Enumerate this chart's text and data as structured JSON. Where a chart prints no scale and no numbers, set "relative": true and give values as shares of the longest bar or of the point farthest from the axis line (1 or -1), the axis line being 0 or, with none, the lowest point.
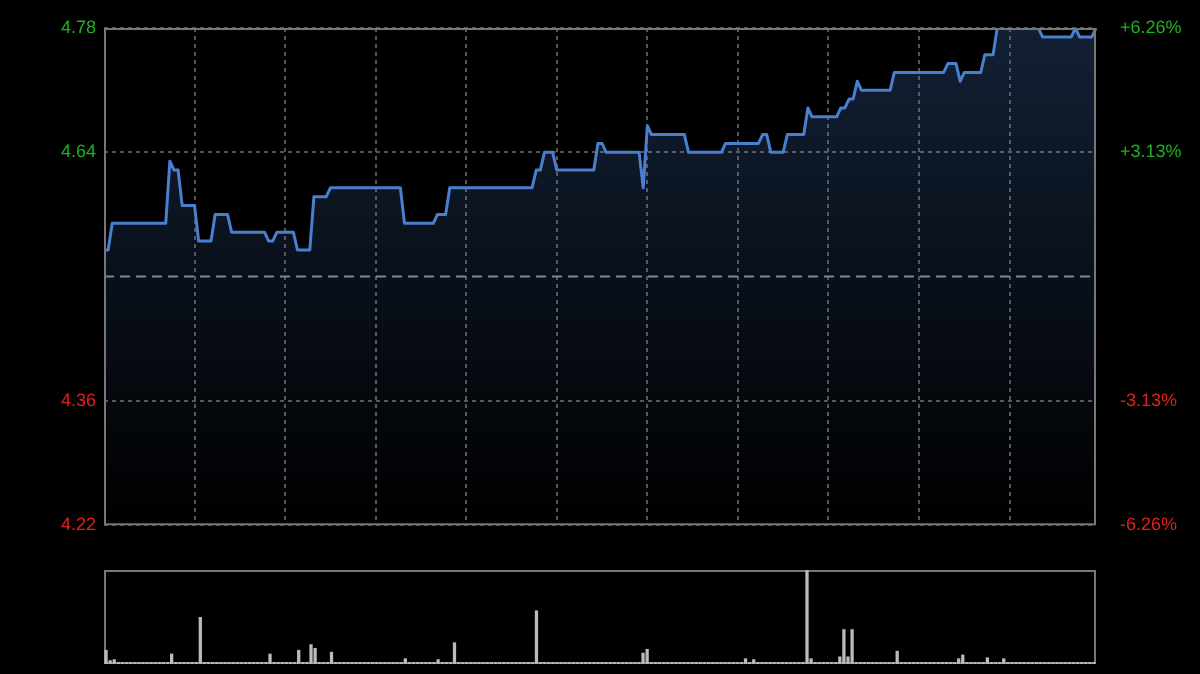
{
  "chart_data": [
    {
      "type": "area",
      "categories": [
        null,
        null,
        null,
        null,
        null,
        null,
        null,
        null,
        null,
        null,
        null,
        null,
        null,
        null,
        null,
        null,
        null,
        null,
        null,
        null,
        null,
        null,
        null,
        null,
        null,
        null,
        null,
        null,
        null,
        null,
        null,
        null,
        null,
        null,
        null,
        null,
        null,
        null,
        null,
        null,
        null,
        null,
        null,
        null,
        null,
        null,
        null,
        null,
        null,
        null,
        null,
        null,
        null,
        null,
        null,
        null,
        null,
        null,
        null,
        null,
        null,
        null,
        null,
        null,
        null,
        null,
        null,
        null,
        null,
        null,
        null,
        null,
        null,
        null,
        null,
        null,
        null,
        null,
        null,
        null,
        null,
        null,
        null,
        null,
        null,
        null,
        null,
        null,
        null,
        null,
        null,
        null,
        null,
        null,
        null,
        null,
        null,
        null,
        null,
        null,
        null,
        null,
        null,
        null,
        null,
        null,
        null,
        null,
        null,
        null,
        null,
        null,
        null,
        null,
        null,
        null,
        null,
        null,
        null,
        null,
        null,
        null,
        null,
        null,
        null,
        null,
        null,
        null,
        null,
        null,
        null,
        null,
        null,
        null,
        null,
        null,
        null,
        null,
        null,
        null,
        null,
        null,
        null,
        null,
        null,
        null,
        null,
        null,
        null,
        null,
        null,
        null,
        null,
        null,
        null,
        null,
        null,
        null,
        null,
        null,
        null,
        null,
        null,
        null,
        null,
        null,
        null,
        null,
        null,
        null,
        null,
        null,
        null,
        null,
        null,
        null,
        null,
        null,
        null,
        null,
        null,
        null,
        null,
        null,
        null,
        null,
        null,
        null,
        null,
        null,
        null,
        null,
        null,
        null,
        null,
        null,
        null,
        null,
        null,
        null,
        null,
        null,
        null,
        null,
        null,
        null,
        null,
        null,
        null,
        null,
        null,
        null,
        null,
        null,
        null,
        null,
        null,
        null,
        null,
        null,
        null,
        null,
        null,
        null,
        null,
        null,
        null,
        null,
        null,
        null,
        null,
        null,
        null,
        null,
        null,
        null,
        null,
        null,
        null,
        null,
        null,
        null
      ],
      "values": [
        4.53,
        4.53,
        4.56,
        4.56,
        4.56,
        4.56,
        4.56,
        4.56,
        4.56,
        4.56,
        4.56,
        4.56,
        4.56,
        4.56,
        4.56,
        4.56,
        4.63,
        4.62,
        4.62,
        4.58,
        4.58,
        4.58,
        4.58,
        4.54,
        4.54,
        4.54,
        4.54,
        4.57,
        4.57,
        4.57,
        4.57,
        4.55,
        4.55,
        4.55,
        4.55,
        4.55,
        4.55,
        4.55,
        4.55,
        4.55,
        4.54,
        4.54,
        4.55,
        4.55,
        4.55,
        4.55,
        4.55,
        4.53,
        4.53,
        4.53,
        4.53,
        4.59,
        4.59,
        4.59,
        4.59,
        4.6,
        4.6,
        4.6,
        4.6,
        4.6,
        4.6,
        4.6,
        4.6,
        4.6,
        4.6,
        4.6,
        4.6,
        4.6,
        4.6,
        4.6,
        4.6,
        4.6,
        4.6,
        4.56,
        4.56,
        4.56,
        4.56,
        4.56,
        4.56,
        4.56,
        4.56,
        4.57,
        4.57,
        4.57,
        4.6,
        4.6,
        4.6,
        4.6,
        4.6,
        4.6,
        4.6,
        4.6,
        4.6,
        4.6,
        4.6,
        4.6,
        4.6,
        4.6,
        4.6,
        4.6,
        4.6,
        4.6,
        4.6,
        4.6,
        4.6,
        4.62,
        4.62,
        4.64,
        4.64,
        4.64,
        4.62,
        4.62,
        4.62,
        4.62,
        4.62,
        4.62,
        4.62,
        4.62,
        4.62,
        4.62,
        4.65,
        4.65,
        4.64,
        4.64,
        4.64,
        4.64,
        4.64,
        4.64,
        4.64,
        4.64,
        4.64,
        4.6,
        4.67,
        4.66,
        4.66,
        4.66,
        4.66,
        4.66,
        4.66,
        4.66,
        4.66,
        4.66,
        4.64,
        4.64,
        4.64,
        4.64,
        4.64,
        4.64,
        4.64,
        4.64,
        4.64,
        4.65,
        4.65,
        4.65,
        4.65,
        4.65,
        4.65,
        4.65,
        4.65,
        4.65,
        4.66,
        4.66,
        4.64,
        4.64,
        4.64,
        4.64,
        4.66,
        4.66,
        4.66,
        4.66,
        4.66,
        4.69,
        4.68,
        4.68,
        4.68,
        4.68,
        4.68,
        4.68,
        4.68,
        4.69,
        4.69,
        4.7,
        4.7,
        4.72,
        4.71,
        4.71,
        4.71,
        4.71,
        4.71,
        4.71,
        4.71,
        4.71,
        4.73,
        4.73,
        4.73,
        4.73,
        4.73,
        4.73,
        4.73,
        4.73,
        4.73,
        4.73,
        4.73,
        4.73,
        4.73,
        4.74,
        4.74,
        4.74,
        4.72,
        4.73,
        4.73,
        4.73,
        4.73,
        4.73,
        4.75,
        4.75,
        4.75,
        4.78,
        4.78,
        4.78,
        4.78,
        4.78,
        4.78,
        4.78,
        4.78,
        4.78,
        4.78,
        4.78,
        4.77,
        4.77,
        4.77,
        4.77,
        4.77,
        4.77,
        4.77,
        4.77,
        4.78,
        4.77,
        4.77,
        4.77,
        4.77,
        4.78
      ],
      "color": "#4a7fd0",
      "ylim": [
        4.22,
        4.78
      ],
      "yticks": [
        4.22,
        4.36,
        4.64,
        4.78
      ],
      "y2lim": [
        -6.26,
        6.26
      ],
      "y2ticks": [
        {
          "value": -6.26,
          "label": "-6.26%"
        },
        {
          "value": -3.13,
          "label": "-3.13%"
        },
        {
          "value": 3.13,
          "label": "+3.13%"
        },
        {
          "value": 6.26,
          "label": "+6.26%"
        }
      ],
      "ref_lines": [
        {
          "axis": "y",
          "value": 4.5,
          "color": "#888888",
          "line_style": "dashed"
        }
      ],
      "grid": true,
      "tick_labels": "y"
    },
    {
      "type": "bar",
      "relative": true,
      "color": "#bbbbbb",
      "tick_labels": false,
      "categories": [
        null,
        null,
        null,
        null,
        null,
        null,
        null,
        null,
        null,
        null,
        null,
        null,
        null,
        null,
        null,
        null,
        null,
        null,
        null,
        null,
        null,
        null,
        null,
        null,
        null,
        null,
        null,
        null,
        null,
        null,
        null,
        null,
        null,
        null,
        null,
        null,
        null,
        null,
        null,
        null,
        null,
        null,
        null,
        null,
        null,
        null,
        null,
        null,
        null,
        null,
        null,
        null,
        null,
        null,
        null,
        null,
        null,
        null,
        null,
        null,
        null,
        null,
        null,
        null,
        null,
        null,
        null,
        null,
        null,
        null,
        null,
        null,
        null,
        null,
        null,
        null,
        null,
        null,
        null,
        null,
        null,
        null,
        null,
        null,
        null,
        null,
        null,
        null,
        null,
        null,
        null,
        null,
        null,
        null,
        null,
        null,
        null,
        null,
        null,
        null,
        null,
        null,
        null,
        null,
        null,
        null,
        null,
        null,
        null,
        null,
        null,
        null,
        null,
        null,
        null,
        null,
        null,
        null,
        null,
        null,
        null,
        null,
        null,
        null,
        null,
        null,
        null,
        null,
        null,
        null,
        null,
        null,
        null,
        null,
        null,
        null,
        null,
        null,
        null,
        null,
        null,
        null,
        null,
        null,
        null,
        null,
        null,
        null,
        null,
        null,
        null,
        null,
        null,
        null,
        null,
        null,
        null,
        null,
        null,
        null,
        null,
        null,
        null,
        null,
        null,
        null,
        null,
        null,
        null,
        null,
        null,
        null,
        null,
        null,
        null,
        null,
        null,
        null,
        null,
        null,
        null,
        null,
        null,
        null,
        null,
        null,
        null,
        null,
        null,
        null,
        null,
        null,
        null,
        null,
        null,
        null,
        null,
        null,
        null,
        null,
        null,
        null,
        null,
        null,
        null,
        null,
        null,
        null,
        null,
        null,
        null,
        null,
        null,
        null,
        null,
        null,
        null,
        null,
        null,
        null,
        null,
        null,
        null,
        null,
        null,
        null,
        null,
        null,
        null,
        null,
        null,
        null,
        null,
        null,
        null,
        null,
        null,
        null,
        null,
        null,
        null,
        null
      ],
      "values": [
        0.15,
        0.04,
        0.05,
        0.02,
        0.02,
        0.02,
        0.02,
        0.02,
        0.02,
        0.02,
        0.02,
        0.02,
        0.02,
        0.02,
        0.02,
        0.02,
        0.11,
        0.02,
        0.02,
        0.02,
        0.02,
        0.02,
        0.02,
        0.5,
        0.02,
        0.02,
        0.02,
        0.02,
        0.02,
        0.02,
        0.02,
        0.02,
        0.02,
        0.02,
        0.02,
        0.02,
        0.02,
        0.02,
        0.02,
        0.02,
        0.11,
        0.02,
        0.02,
        0.02,
        0.02,
        0.02,
        0.02,
        0.15,
        0.02,
        0.02,
        0.21,
        0.17,
        0.02,
        0.02,
        0.02,
        0.13,
        0.02,
        0.02,
        0.02,
        0.02,
        0.02,
        0.02,
        0.02,
        0.02,
        0.02,
        0.02,
        0.02,
        0.02,
        0.02,
        0.02,
        0.02,
        0.02,
        0.02,
        0.06,
        0.02,
        0.02,
        0.02,
        0.02,
        0.02,
        0.02,
        0.02,
        0.05,
        0.02,
        0.02,
        0.02,
        0.23,
        0.02,
        0.02,
        0.02,
        0.02,
        0.02,
        0.02,
        0.02,
        0.02,
        0.02,
        0.02,
        0.02,
        0.02,
        0.02,
        0.02,
        0.02,
        0.02,
        0.02,
        0.02,
        0.02,
        0.57,
        0.02,
        0.02,
        0.02,
        0.02,
        0.02,
        0.02,
        0.02,
        0.02,
        0.02,
        0.02,
        0.02,
        0.02,
        0.02,
        0.02,
        0.02,
        0.02,
        0.02,
        0.02,
        0.02,
        0.02,
        0.02,
        0.02,
        0.02,
        0.02,
        0.02,
        0.12,
        0.16,
        0.02,
        0.02,
        0.02,
        0.02,
        0.02,
        0.02,
        0.02,
        0.02,
        0.02,
        0.02,
        0.02,
        0.02,
        0.02,
        0.02,
        0.02,
        0.02,
        0.02,
        0.02,
        0.02,
        0.02,
        0.02,
        0.02,
        0.02,
        0.06,
        0.02,
        0.05,
        0.02,
        0.02,
        0.02,
        0.02,
        0.02,
        0.02,
        0.02,
        0.02,
        0.02,
        0.02,
        0.02,
        0.02,
        1,
        0.06,
        0.02,
        0.02,
        0.02,
        0.02,
        0.02,
        0.02,
        0.08,
        0.37,
        0.08,
        0.37,
        0.02,
        0.02,
        0.02,
        0.02,
        0.02,
        0.02,
        0.02,
        0.02,
        0.02,
        0.02,
        0.14,
        0.02,
        0.02,
        0.02,
        0.02,
        0.02,
        0.02,
        0.02,
        0.02,
        0.02,
        0.02,
        0.02,
        0.02,
        0.02,
        0.02,
        0.06,
        0.1,
        0.02,
        0.02,
        0.02,
        0.02,
        0.02,
        0.07,
        0.02,
        0.02,
        0.02,
        0.06,
        0.02,
        0.02,
        0.02,
        0.02,
        0.02,
        0.02,
        0.02,
        0.02,
        0.02,
        0.02,
        0.02,
        0.02,
        0.02,
        0.02,
        0.02,
        0.02,
        0.02,
        0.02,
        0.02,
        0.02,
        0.02,
        0.02
      ]
    }
  ]
}
